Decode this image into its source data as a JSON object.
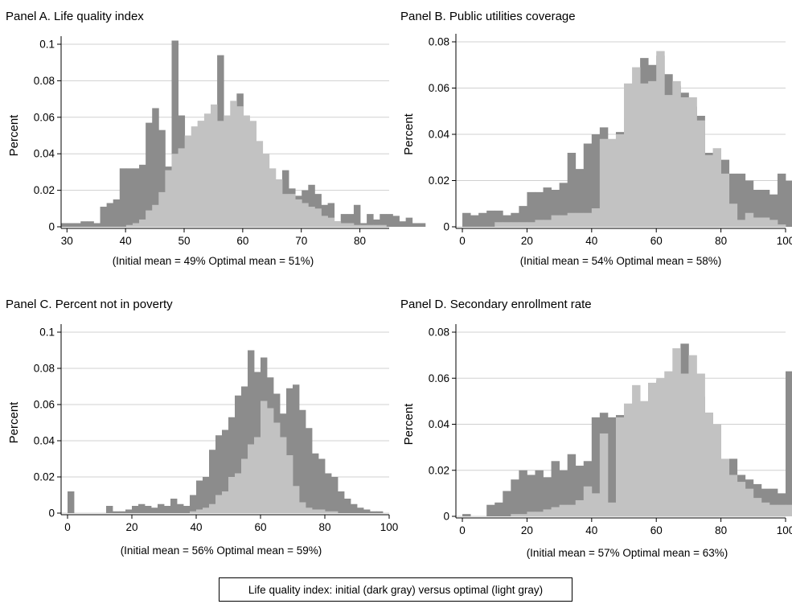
{
  "chart_data": [
    {
      "type": "bar",
      "title": "Panel A. Life quality index",
      "ylabel": "Percent",
      "caption": "(Initial mean = 49%    Optimal mean = 51%)",
      "xlim": [
        29,
        85
      ],
      "ylim": [
        0,
        0.1
      ],
      "xticks": [
        30,
        40,
        50,
        60,
        70,
        80
      ],
      "yticks": [
        0,
        0.02,
        0.04,
        0.06,
        0.08,
        0.1
      ],
      "ytick_labels": [
        "0",
        "0.02",
        "0.04",
        "0.06",
        "0.08",
        "0.1"
      ],
      "grid": true,
      "series": [
        {
          "name": "initial",
          "color": "#8c8c8c",
          "x0": 29,
          "width": 1.11,
          "values": [
            0.002,
            0.002,
            0.002,
            0.003,
            0.003,
            0.002,
            0.011,
            0.013,
            0.015,
            0.032,
            0.032,
            0.032,
            0.034,
            0.057,
            0.065,
            0.053,
            0.033,
            0.102,
            0.061,
            0.043,
            0.045,
            0.058,
            0.056,
            0.057,
            0.094,
            0.058,
            0.056,
            0.073,
            0.052,
            0.041,
            0.036,
            0.032,
            0.025,
            0.025,
            0.031,
            0.021,
            0.017,
            0.02,
            0.023,
            0.018,
            0.012,
            0.013,
            0.003,
            0.007,
            0.007,
            0.012,
            0.002,
            0.007,
            0.004,
            0.007,
            0.007,
            0.006,
            0.003,
            0.005,
            0.002,
            0.002
          ]
        },
        {
          "name": "optimal",
          "color": "#c2c2c2",
          "x0": 29,
          "width": 1.11,
          "values": [
            0,
            0,
            0,
            0,
            0,
            0,
            0,
            0,
            0,
            0,
            0.001,
            0.002,
            0.004,
            0.009,
            0.012,
            0.019,
            0.031,
            0.04,
            0.043,
            0.05,
            0.055,
            0.058,
            0.062,
            0.067,
            0.058,
            0.061,
            0.069,
            0.066,
            0.061,
            0.058,
            0.047,
            0.04,
            0.032,
            0.026,
            0.018,
            0.018,
            0.015,
            0.013,
            0.011,
            0.01,
            0.006,
            0.005,
            0.003,
            0.002,
            0.002,
            0.001,
            0.001,
            0.001,
            0.001,
            0.001,
            0,
            0,
            0,
            0,
            0,
            0
          ]
        }
      ]
    },
    {
      "type": "bar",
      "title": "Panel B. Public utilities coverage",
      "ylabel": "Percent",
      "caption": "(Initial mean = 54%    Optimal mean = 58%)",
      "xlim": [
        -2,
        100
      ],
      "ylim": [
        0,
        0.08
      ],
      "xticks": [
        0,
        20,
        40,
        60,
        80,
        100
      ],
      "yticks": [
        0,
        0.02,
        0.04,
        0.06,
        0.08
      ],
      "ytick_labels": [
        "0",
        "0.02",
        "0.04",
        "0.06",
        "0.08"
      ],
      "grid": true,
      "series": [
        {
          "name": "initial",
          "color": "#8c8c8c",
          "x0": 0,
          "width": 2.5,
          "values": [
            0.006,
            0.005,
            0.006,
            0.007,
            0.007,
            0.005,
            0.006,
            0.009,
            0.015,
            0.015,
            0.017,
            0.016,
            0.019,
            0.032,
            0.025,
            0.036,
            0.04,
            0.043,
            0.036,
            0.041,
            0.047,
            0.062,
            0.073,
            0.07,
            0.074,
            0.066,
            0.061,
            0.058,
            0.052,
            0.048,
            0.032,
            0.016,
            0.029,
            0.023,
            0.023,
            0.02,
            0.016,
            0.016,
            0.014,
            0.023,
            0.02
          ]
        },
        {
          "name": "optimal",
          "color": "#c2c2c2",
          "x0": 0,
          "width": 2.5,
          "values": [
            0,
            0,
            0,
            0,
            0.002,
            0.002,
            0.002,
            0.002,
            0.002,
            0.003,
            0.003,
            0.005,
            0.005,
            0.006,
            0.006,
            0.006,
            0.008,
            0.038,
            0.038,
            0.04,
            0.062,
            0.069,
            0.062,
            0.063,
            0.076,
            0.057,
            0.063,
            0.056,
            0.056,
            0.046,
            0.031,
            0.034,
            0.023,
            0.01,
            0.003,
            0.006,
            0.004,
            0.004,
            0.003,
            0.001,
            0.0
          ]
        }
      ]
    },
    {
      "type": "bar",
      "title": "Panel C. Percent not in poverty",
      "ylabel": "Percent",
      "caption": "(Initial mean =  56%    Optimal mean = 59%)",
      "xlim": [
        -2,
        100
      ],
      "ylim": [
        0,
        0.1
      ],
      "xticks": [
        0,
        20,
        40,
        60,
        80,
        100
      ],
      "yticks": [
        0,
        0.02,
        0.04,
        0.06,
        0.08,
        0.1
      ],
      "ytick_labels": [
        "0",
        "0.02",
        "0.04",
        "0.06",
        "0.08",
        "0.1"
      ],
      "grid": true,
      "series": [
        {
          "name": "initial",
          "color": "#8c8c8c",
          "x0": 0,
          "width": 2,
          "values": [
            0.012,
            0,
            0,
            0,
            0,
            0,
            0.004,
            0.001,
            0.001,
            0.002,
            0.004,
            0.005,
            0.004,
            0.003,
            0.005,
            0.004,
            0.008,
            0.005,
            0.004,
            0.01,
            0.018,
            0.02,
            0.035,
            0.043,
            0.046,
            0.053,
            0.065,
            0.07,
            0.09,
            0.078,
            0.086,
            0.075,
            0.066,
            0.055,
            0.069,
            0.071,
            0.057,
            0.047,
            0.033,
            0.03,
            0.022,
            0.02,
            0.012,
            0.008,
            0.005,
            0.003,
            0.002,
            0.001,
            0.001
          ]
        },
        {
          "name": "optimal",
          "color": "#c2c2c2",
          "x0": 0,
          "width": 2,
          "values": [
            0,
            0,
            0,
            0,
            0,
            0,
            0,
            0,
            0,
            0,
            0,
            0,
            0,
            0,
            0,
            0,
            0,
            0,
            0,
            0.001,
            0.002,
            0.003,
            0.005,
            0.01,
            0.012,
            0.02,
            0.022,
            0.03,
            0.038,
            0.042,
            0.062,
            0.058,
            0.05,
            0.042,
            0.032,
            0.015,
            0.006,
            0.003,
            0.002,
            0.002,
            0.001,
            0.001,
            0,
            0,
            0,
            0,
            0,
            0,
            0
          ]
        }
      ]
    },
    {
      "type": "bar",
      "title": "Panel D. Secondary enrollment rate",
      "ylabel": "Percent",
      "caption": "(Initial mean = 57%    Optimal mean = 63%)",
      "xlim": [
        -2,
        100
      ],
      "ylim": [
        0,
        0.08
      ],
      "xticks": [
        0,
        20,
        40,
        60,
        80,
        100
      ],
      "yticks": [
        0,
        0.02,
        0.04,
        0.06,
        0.08
      ],
      "ytick_labels": [
        "0",
        "0.02",
        "0.04",
        "0.06",
        "0.08"
      ],
      "grid": true,
      "series": [
        {
          "name": "initial",
          "color": "#8c8c8c",
          "x0": 0,
          "width": 2.5,
          "values": [
            0.001,
            0,
            0,
            0.005,
            0.006,
            0.011,
            0.016,
            0.02,
            0.018,
            0.02,
            0.017,
            0.024,
            0.02,
            0.027,
            0.022,
            0.024,
            0.043,
            0.045,
            0.043,
            0.044,
            0.031,
            0.03,
            0.05,
            0.058,
            0.059,
            0.055,
            0.063,
            0.075,
            0.05,
            0.052,
            0.045,
            0.03,
            0.023,
            0.025,
            0.018,
            0.016,
            0.014,
            0.012,
            0.012,
            0.01,
            0.063
          ]
        },
        {
          "name": "optimal",
          "color": "#c2c2c2",
          "x0": 0,
          "width": 2.5,
          "values": [
            0,
            0,
            0,
            0,
            0,
            0,
            0.001,
            0.001,
            0.002,
            0.002,
            0.003,
            0.004,
            0.005,
            0.005,
            0.007,
            0.013,
            0.01,
            0.036,
            0.006,
            0.043,
            0.049,
            0.057,
            0.05,
            0.058,
            0.06,
            0.063,
            0.073,
            0.062,
            0.07,
            0.062,
            0.045,
            0.04,
            0.025,
            0.018,
            0.015,
            0.012,
            0.008,
            0.006,
            0.005,
            0.005,
            0.005
          ]
        }
      ]
    }
  ],
  "legend": {
    "text": "Life quality index: initial (dark gray) versus optimal (light gray)",
    "placement": "bottom-center"
  }
}
